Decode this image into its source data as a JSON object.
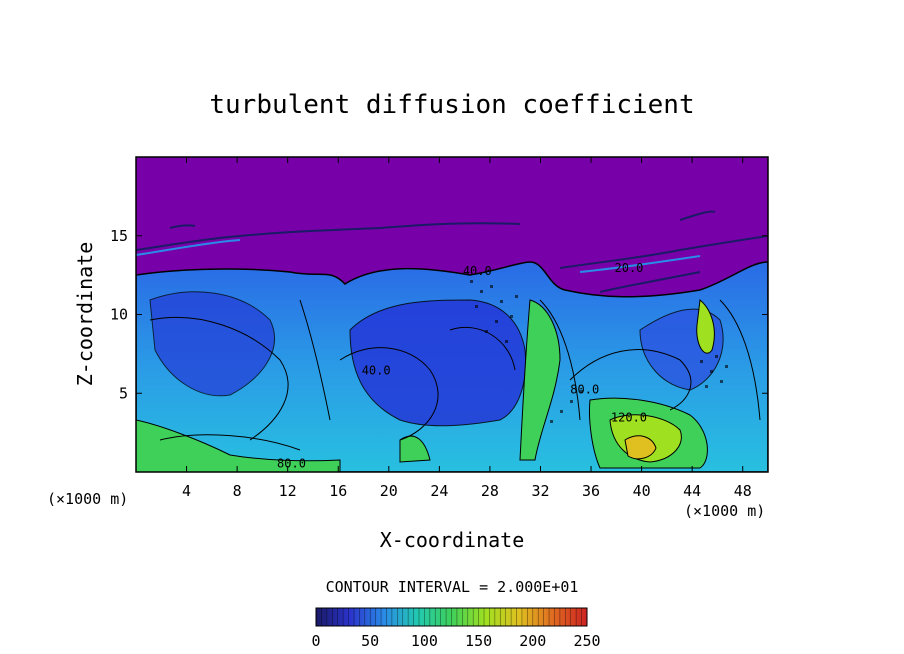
{
  "chart_data": {
    "type": "heatmap",
    "title": "turbulent diffusion coefficient",
    "xlabel": "X-coordinate",
    "ylabel": "Z-coordinate",
    "x_unit": "(×1000 m)",
    "x_unit_right": "(×1000 m)",
    "xlim": [
      0,
      50
    ],
    "ylim": [
      0,
      20
    ],
    "x_ticks": [
      4,
      8,
      12,
      16,
      20,
      24,
      28,
      32,
      36,
      40,
      44,
      48
    ],
    "y_ticks": [
      5,
      10,
      15
    ],
    "contour_interval_text": "CONTOUR INTERVAL = 2.000E+01",
    "contour_labels": [
      {
        "text": "20.0",
        "x": 39.0,
        "y": 12.7
      },
      {
        "text": "40.0",
        "x": 19.0,
        "y": 6.2
      },
      {
        "text": "40.0",
        "x": 27.0,
        "y": 12.5
      },
      {
        "text": "80.0",
        "x": 12.3,
        "y": 0.3
      },
      {
        "text": "80.0",
        "x": 35.5,
        "y": 5.0
      },
      {
        "text": "120.0",
        "x": 39.0,
        "y": 3.2
      }
    ],
    "colorbar": {
      "min": 0,
      "max": 250,
      "ticks": [
        "0",
        "50",
        "100",
        "150",
        "200",
        "250"
      ],
      "colors": [
        "#1a1a66",
        "#2b33cc",
        "#2a8ae6",
        "#22c9b0",
        "#3fd05a",
        "#9fe020",
        "#e0c020",
        "#e06a20",
        "#cc2222"
      ]
    },
    "background_color": "#7800a8"
  }
}
